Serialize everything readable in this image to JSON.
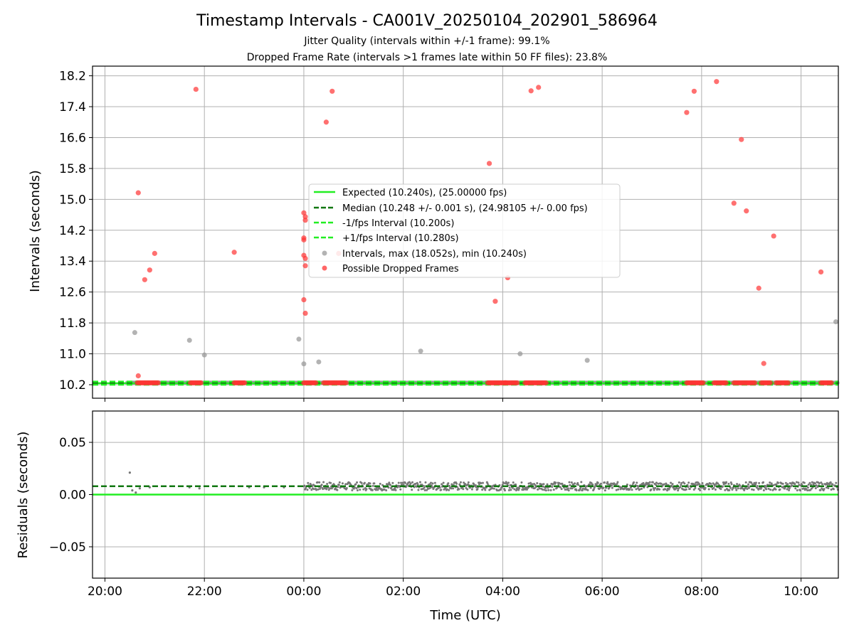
{
  "chart_data": {
    "title": "Timestamp Intervals - CA001V_20250104_202901_586964",
    "subtitles": [
      "Jitter Quality (intervals within +/-1 frame): 99.1%",
      "Dropped Frame Rate (intervals >1 frames late within 50 FF files): 23.8%"
    ],
    "xlabel": "Time (UTC)",
    "x_ticks": [
      {
        "hour": 20,
        "label": "20:00"
      },
      {
        "hour": 22,
        "label": "22:00"
      },
      {
        "hour": 24,
        "label": "00:00"
      },
      {
        "hour": 26,
        "label": "02:00"
      },
      {
        "hour": 28,
        "label": "04:00"
      },
      {
        "hour": 30,
        "label": "06:00"
      },
      {
        "hour": 32,
        "label": "08:00"
      },
      {
        "hour": 34,
        "label": "10:00"
      }
    ],
    "xlim_hours": [
      19.75,
      34.75
    ],
    "grid": true,
    "top": {
      "type": "scatter",
      "ylabel": "Intervals (seconds)",
      "ylim": [
        9.85,
        18.45
      ],
      "y_ticks": [
        {
          "value": 10.2,
          "label": "10.2"
        },
        {
          "value": 11.0,
          "label": "11.0"
        },
        {
          "value": 11.8,
          "label": "11.8"
        },
        {
          "value": 12.6,
          "label": "12.6"
        },
        {
          "value": 13.4,
          "label": "13.4"
        },
        {
          "value": 14.2,
          "label": "14.2"
        },
        {
          "value": 15.0,
          "label": "15.0"
        },
        {
          "value": 15.8,
          "label": "15.8"
        },
        {
          "value": 16.6,
          "label": "16.6"
        },
        {
          "value": 17.4,
          "label": "17.4"
        },
        {
          "value": 18.2,
          "label": "18.2"
        }
      ],
      "lines": [
        {
          "name": "Expected (10.240s), (25.00000 fps)",
          "y": 10.24,
          "color": "#22ee22",
          "dash": "solid"
        },
        {
          "name": "Median (10.248 +/- 0.001 s), (24.98105 +/- 0.00 fps)",
          "y": 10.248,
          "color": "#117711",
          "dash": "dashed"
        },
        {
          "name": "-1/fps Interval (10.200s)",
          "y": 10.2,
          "color": "#22ee22",
          "dash": "dashed"
        },
        {
          "name": "+1/fps Interval (10.280s)",
          "y": 10.28,
          "color": "#22ee22",
          "dash": "dashed"
        }
      ],
      "intervals_series": {
        "name": "Intervals, max (18.052s), min (10.240s)",
        "color": "#999999",
        "outliers": [
          [
            20.6,
            11.55
          ],
          [
            21.7,
            11.35
          ],
          [
            22.0,
            10.97
          ],
          [
            23.9,
            11.38
          ],
          [
            24.0,
            10.74
          ],
          [
            24.3,
            10.79
          ],
          [
            26.35,
            11.07
          ],
          [
            28.35,
            11.0
          ],
          [
            29.7,
            10.83
          ],
          [
            34.7,
            11.83
          ]
        ],
        "baseline": 10.248,
        "baseline_segments": [
          [
            20.45,
            34.75
          ]
        ]
      },
      "dropped_series": {
        "name": "Possible Dropped Frames",
        "color": "#ff3333",
        "points": [
          [
            20.67,
            15.17
          ],
          [
            20.67,
            10.43
          ],
          [
            20.8,
            12.92
          ],
          [
            20.9,
            13.17
          ],
          [
            21.0,
            13.6
          ],
          [
            21.83,
            17.85
          ],
          [
            22.6,
            13.63
          ],
          [
            24.0,
            14.65
          ],
          [
            24.03,
            14.55
          ],
          [
            24.03,
            14.46
          ],
          [
            24.0,
            14.0
          ],
          [
            24.0,
            13.95
          ],
          [
            24.0,
            13.55
          ],
          [
            24.03,
            13.47
          ],
          [
            24.03,
            13.28
          ],
          [
            24.0,
            12.4
          ],
          [
            24.03,
            12.05
          ],
          [
            24.45,
            17.0
          ],
          [
            24.57,
            17.8
          ],
          [
            24.7,
            13.6
          ],
          [
            27.73,
            15.93
          ],
          [
            27.85,
            12.36
          ],
          [
            28.1,
            12.97
          ],
          [
            28.57,
            17.81
          ],
          [
            28.72,
            17.9
          ],
          [
            31.7,
            17.25
          ],
          [
            31.85,
            17.8
          ],
          [
            32.3,
            18.05
          ],
          [
            32.65,
            14.9
          ],
          [
            32.8,
            16.55
          ],
          [
            32.9,
            14.7
          ],
          [
            33.15,
            12.7
          ],
          [
            33.25,
            10.75
          ],
          [
            33.45,
            14.05
          ],
          [
            34.4,
            13.12
          ]
        ],
        "clusters": [
          [
            20.65,
            21.1
          ],
          [
            21.72,
            21.95
          ],
          [
            22.6,
            22.82
          ],
          [
            24.0,
            24.25
          ],
          [
            24.4,
            24.88
          ],
          [
            27.7,
            28.07
          ],
          [
            28.05,
            28.3
          ],
          [
            28.45,
            28.9
          ],
          [
            31.7,
            32.05
          ],
          [
            32.25,
            32.5
          ],
          [
            32.65,
            33.1
          ],
          [
            33.2,
            33.4
          ],
          [
            33.5,
            33.75
          ],
          [
            34.4,
            34.62
          ]
        ],
        "cluster_y": 10.248
      },
      "legend_placement": "center"
    },
    "bottom": {
      "type": "scatter",
      "ylabel": "Residuals (seconds)",
      "ylim": [
        -0.08,
        0.08
      ],
      "y_ticks": [
        {
          "value": 0.05,
          "label": "0.05"
        },
        {
          "value": 0.0,
          "label": "0.00"
        },
        {
          "value": -0.05,
          "label": "−0.05"
        }
      ],
      "expected_line": {
        "y": 0.0,
        "color": "#22ee22"
      },
      "median_line": {
        "y": 0.008,
        "color": "#117711"
      },
      "residual_color": "#777777",
      "residual_points": [
        [
          20.5,
          0.021
        ],
        [
          20.55,
          0.004
        ],
        [
          20.62,
          0.002
        ],
        [
          20.7,
          0.006
        ],
        [
          20.9,
          0.007
        ],
        [
          21.7,
          0.007
        ],
        [
          21.9,
          0.006
        ],
        [
          22.9,
          0.007
        ],
        [
          23.2,
          0.007
        ],
        [
          23.6,
          0.007
        ]
      ],
      "residual_band": {
        "x_start": 24.0,
        "x_end": 34.75,
        "center": 0.008,
        "half_width": 0.004
      }
    }
  }
}
